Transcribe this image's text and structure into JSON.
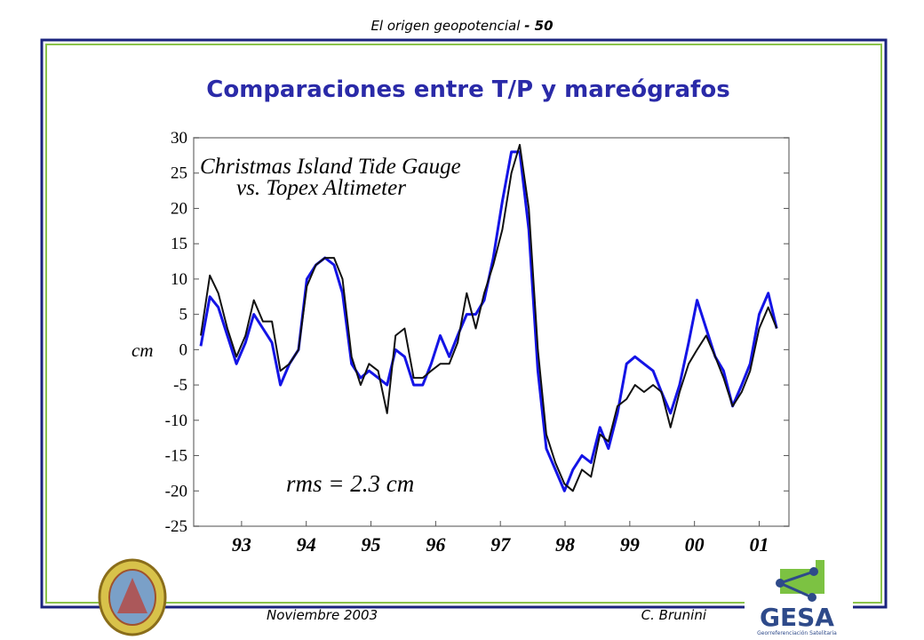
{
  "header": {
    "title": "El origen geopotencial",
    "page": "- 50"
  },
  "footer": {
    "date": "Noviembre 2003",
    "author": "C. Brunini"
  },
  "logo": {
    "name": "GESA",
    "subtitle": "Georreferenciación Satelitaria"
  },
  "chart_data": {
    "type": "line",
    "title": "Comparaciones entre T/P y mareógrafos",
    "ylabel": "cm",
    "annotations": [
      "Christmas Island Tide Gauge",
      "vs. Topex Altimeter",
      "rms = 2.3 cm"
    ],
    "x": [
      1992.87,
      1993.01,
      1993.14,
      1993.28,
      1993.42,
      1993.56,
      1993.69,
      1993.83,
      1993.97,
      1994.1,
      1994.24,
      1994.38,
      1994.51,
      1994.65,
      1994.79,
      1994.93,
      1995.06,
      1995.2,
      1995.34,
      1995.47,
      1995.61,
      1995.75,
      1995.88,
      1996.02,
      1996.16,
      1996.3,
      1996.43,
      1996.57,
      1996.71,
      1996.84,
      1996.98,
      1997.12,
      1997.25,
      1997.39,
      1997.53,
      1997.67,
      1997.8,
      1997.94,
      1998.08,
      1998.21,
      1998.35,
      1998.49,
      1998.62,
      1998.76,
      1998.9,
      1999.04,
      1999.17,
      1999.31,
      1999.45,
      1999.58,
      1999.72,
      1999.86,
      1999.99,
      2000.13,
      2000.27,
      2000.41,
      2000.54,
      2000.68,
      2000.82,
      2000.95,
      2001.09,
      2001.23,
      2001.36,
      2001.5,
      2001.64,
      2001.77
    ],
    "series": [
      {
        "color": "#1414e6",
        "values": [
          0.5,
          7.5,
          6,
          2,
          -2,
          1,
          5,
          3,
          1,
          -5,
          -2,
          0,
          10,
          12,
          13,
          12,
          8,
          -2,
          -4,
          -3,
          -4,
          -5,
          0,
          -1,
          -5,
          -5,
          -2,
          2,
          -1,
          2,
          5,
          5,
          7,
          13,
          21,
          28,
          28,
          17,
          -3,
          -14,
          -17,
          -20,
          -17,
          -15,
          -16,
          -11,
          -14,
          -9,
          -2,
          -1,
          -2,
          -3,
          -6,
          -9,
          -5,
          1,
          7,
          3,
          -1,
          -3,
          -8,
          -5,
          -2,
          5,
          8,
          3
        ]
      },
      {
        "color": "#111111",
        "values": [
          2,
          10.5,
          8,
          3,
          -1,
          2,
          7,
          4,
          4,
          -3,
          -2,
          0,
          9,
          12,
          13,
          13,
          10,
          -1,
          -5,
          -2,
          -3,
          -9,
          2,
          3,
          -4,
          -4,
          -3,
          -2,
          -2,
          1,
          8,
          3,
          8,
          12,
          17,
          25,
          29,
          20,
          0,
          -12,
          -16,
          -19,
          -20,
          -17,
          -18,
          -12,
          -13,
          -8,
          -7,
          -5,
          -6,
          -5,
          -6,
          -11,
          -6,
          -2,
          0,
          2,
          -1,
          -4,
          -8,
          -6,
          -3,
          3,
          6,
          3
        ]
      }
    ],
    "xlim": [
      1992.76,
      2001.96
    ],
    "ylim": [
      -25,
      30
    ],
    "yticks": [
      -25,
      -20,
      -15,
      -10,
      -5,
      0,
      5,
      10,
      15,
      20,
      25,
      30
    ],
    "xticks": [
      {
        "value": 1993.5,
        "label": "93"
      },
      {
        "value": 1994.5,
        "label": "94"
      },
      {
        "value": 1995.5,
        "label": "95"
      },
      {
        "value": 1996.5,
        "label": "96"
      },
      {
        "value": 1997.5,
        "label": "97"
      },
      {
        "value": 1998.5,
        "label": "98"
      },
      {
        "value": 1999.5,
        "label": "99"
      },
      {
        "value": 2000.5,
        "label": "00"
      },
      {
        "value": 2001.5,
        "label": "01"
      }
    ]
  }
}
